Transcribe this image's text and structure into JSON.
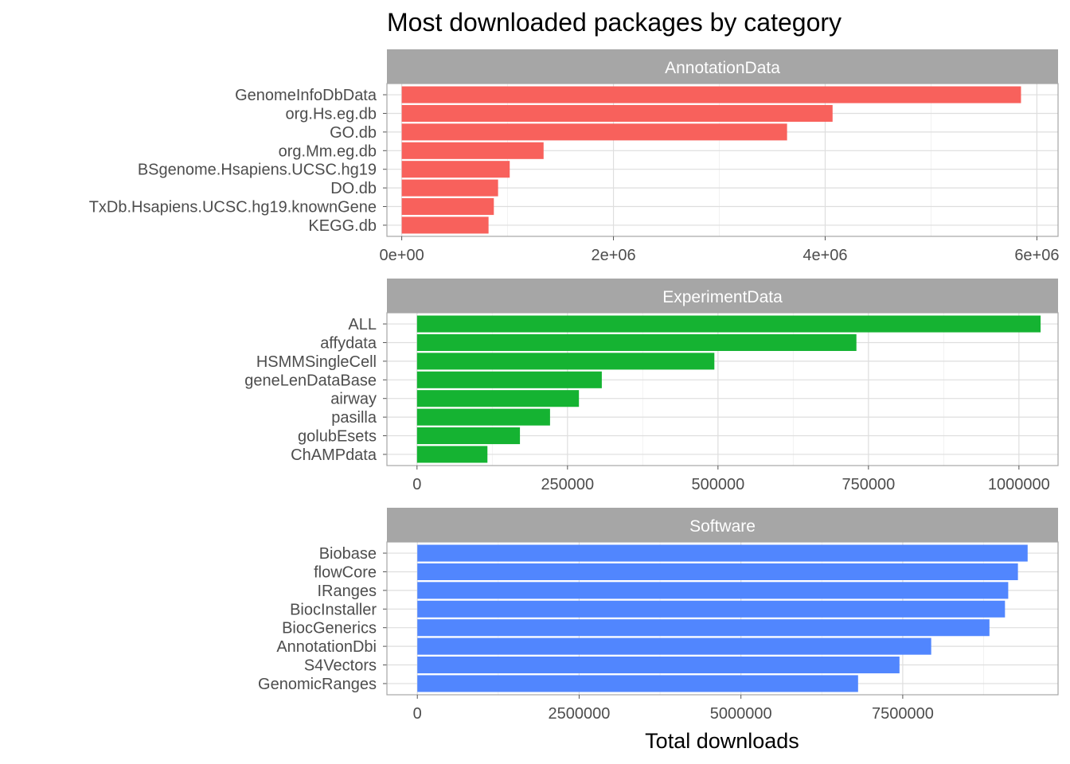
{
  "chart_data": {
    "type": "bar",
    "orientation": "horizontal",
    "title": "Most downloaded packages by category",
    "xlabel": "Total downloads",
    "ylabel": "",
    "grid": true,
    "legend": "none",
    "facet_strip_color": "#a6a6a6",
    "panels": [
      {
        "facet": "AnnotationData",
        "color": "#f8615c",
        "xlim": [
          -140000,
          6200000
        ],
        "ticks": [
          0,
          2000000,
          4000000,
          6000000
        ],
        "tick_labels": [
          "0e+00",
          "2e+06",
          "4e+06",
          "6e+06"
        ],
        "categories": [
          "GenomeInfoDbData",
          "org.Hs.eg.db",
          "GO.db",
          "org.Mm.eg.db",
          "BSgenome.Hsapiens.UCSC.hg19",
          "DO.db",
          "TxDb.Hsapiens.UCSC.hg19.knownGene",
          "KEGG.db"
        ],
        "values": [
          5850000,
          4070000,
          3640000,
          1340000,
          1020000,
          910000,
          870000,
          820000
        ]
      },
      {
        "facet": "ExperimentData",
        "color": "#15b332",
        "xlim": [
          -50000,
          1065000
        ],
        "ticks": [
          0,
          250000,
          500000,
          750000,
          1000000
        ],
        "tick_labels": [
          "0",
          "250000",
          "500000",
          "750000",
          "1000000"
        ],
        "categories": [
          "ALL",
          "affydata",
          "HSMMSingleCell",
          "geneLenDataBase",
          "airway",
          "pasilla",
          "golubEsets",
          "ChAMPdata"
        ],
        "values": [
          1036000,
          730000,
          494000,
          307000,
          269000,
          221000,
          171000,
          117000
        ]
      },
      {
        "facet": "Software",
        "color": "#5186fe",
        "xlim": [
          -470000,
          9900000
        ],
        "ticks": [
          0,
          2500000,
          5000000,
          7500000
        ],
        "tick_labels": [
          "0",
          "2500000",
          "5000000",
          "7500000"
        ],
        "categories": [
          "Biobase",
          "flowCore",
          "IRanges",
          "BiocInstaller",
          "BiocGenerics",
          "AnnotationDbi",
          "S4Vectors",
          "GenomicRanges"
        ],
        "values": [
          9430000,
          9280000,
          9130000,
          9080000,
          8840000,
          7940000,
          7450000,
          6810000
        ]
      }
    ]
  }
}
